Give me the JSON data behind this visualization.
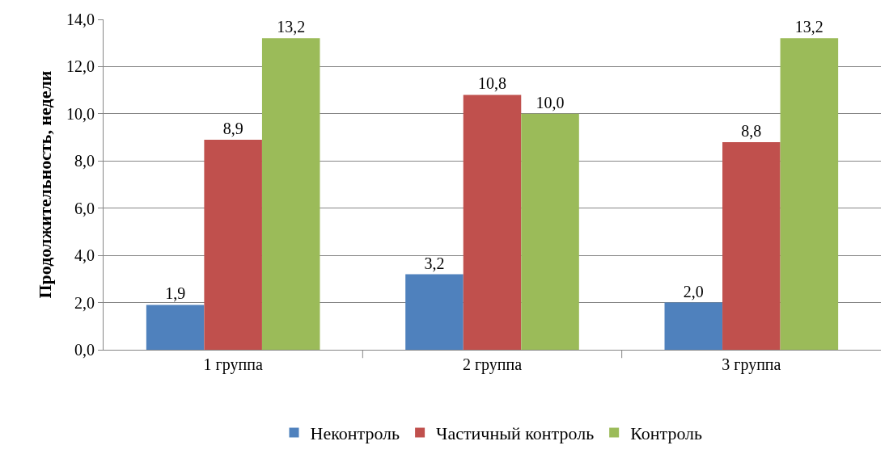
{
  "chart_data": {
    "type": "bar",
    "ylabel": "Продолжительность, недели",
    "categories": [
      "1 группа",
      "2 группа",
      "3 группа"
    ],
    "series": [
      {
        "name": "Неконтроль",
        "color": "#4f81bd",
        "values": [
          1.9,
          3.2,
          2.0
        ],
        "value_labels": [
          "1,9",
          "3,2",
          "2,0"
        ]
      },
      {
        "name": "Частичный контроль",
        "color": "#c0504d",
        "values": [
          8.9,
          10.8,
          8.8
        ],
        "value_labels": [
          "8,9",
          "10,8",
          "8,8"
        ]
      },
      {
        "name": "Контроль",
        "color": "#9bbb59",
        "values": [
          13.2,
          10.0,
          13.2
        ],
        "value_labels": [
          "13,2",
          "10,0",
          "13,2"
        ]
      }
    ],
    "ylim": [
      0,
      14
    ],
    "yticks": [
      {
        "value": 0,
        "label": "0,0"
      },
      {
        "value": 2,
        "label": "2,0"
      },
      {
        "value": 4,
        "label": "4,0"
      },
      {
        "value": 6,
        "label": "6,0"
      },
      {
        "value": 8,
        "label": "8,0"
      },
      {
        "value": 10,
        "label": "10,0"
      },
      {
        "value": 12,
        "label": "12,0"
      },
      {
        "value": 14,
        "label": "14,0"
      }
    ],
    "grid": "y",
    "legend": "bottom"
  }
}
